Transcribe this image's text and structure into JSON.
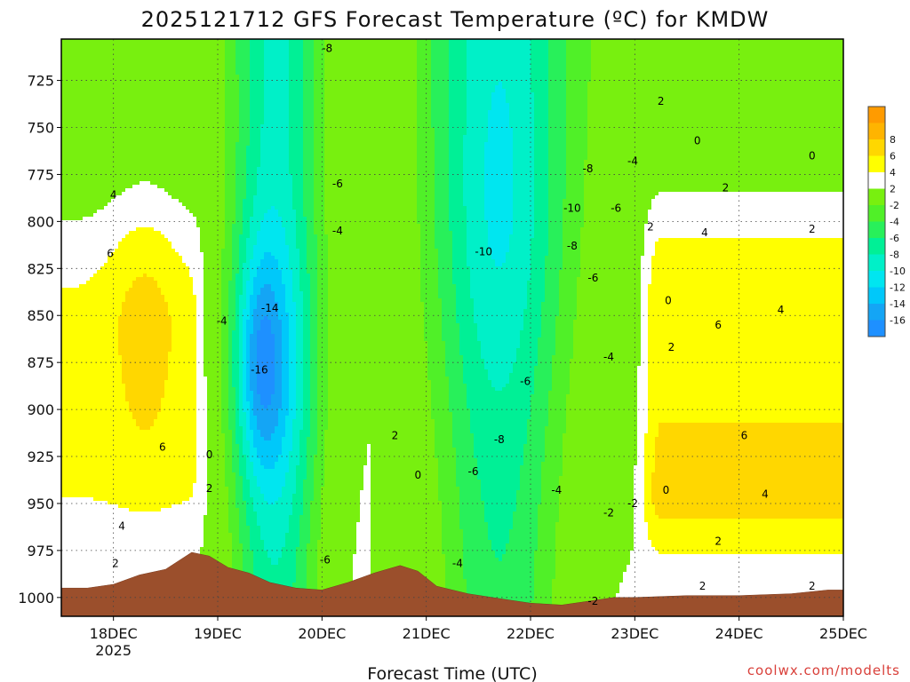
{
  "chart_data": {
    "type": "heatmap",
    "title": "2025121712 GFS Forecast Temperature (ºC) for KMDW",
    "xlabel": "Forecast Time (UTC)",
    "ylabel": "",
    "credit": "coolwx.com/modelts",
    "x_ticks": [
      "18DEC",
      "19DEC",
      "20DEC",
      "21DEC",
      "22DEC",
      "23DEC",
      "24DEC",
      "25DEC"
    ],
    "x_year": "2025",
    "x_range_days": [
      17.5,
      25.0
    ],
    "y_ticks": [
      725,
      750,
      775,
      800,
      825,
      850,
      875,
      900,
      925,
      950,
      975,
      1000
    ],
    "y_range_hpa": [
      703,
      1010
    ],
    "units": "°C",
    "colorbar": {
      "levels": [
        -18,
        -16,
        -14,
        -12,
        -10,
        -8,
        -6,
        -4,
        -2,
        2,
        4,
        6,
        8,
        10
      ],
      "colors": [
        "#1E90FF",
        "#14A5F5",
        "#00C8FA",
        "#00E6F0",
        "#00F0C8",
        "#00F096",
        "#28F05A",
        "#50F028",
        "#78F00F",
        "#FFFFFF",
        "#FFFF00",
        "#FFD700",
        "#FFB400",
        "#FF9B00"
      ],
      "tick_labels": [
        "8",
        "6",
        "4",
        "2",
        "-2",
        "-4",
        "-6",
        "-8",
        "-10",
        "-12",
        "-14",
        "-16"
      ]
    },
    "terrain_surface_hpa": [
      [
        17.5,
        995
      ],
      [
        17.75,
        995
      ],
      [
        18.0,
        993
      ],
      [
        18.25,
        988
      ],
      [
        18.5,
        985
      ],
      [
        18.75,
        976
      ],
      [
        18.92,
        978
      ],
      [
        19.1,
        984
      ],
      [
        19.3,
        987
      ],
      [
        19.5,
        992
      ],
      [
        19.75,
        995
      ],
      [
        20.0,
        996
      ],
      [
        20.25,
        992
      ],
      [
        20.5,
        987
      ],
      [
        20.75,
        983
      ],
      [
        20.92,
        986
      ],
      [
        21.1,
        994
      ],
      [
        21.4,
        998
      ],
      [
        21.75,
        1001
      ],
      [
        22.0,
        1003
      ],
      [
        22.3,
        1004
      ],
      [
        22.55,
        1002
      ],
      [
        22.8,
        1000
      ],
      [
        23.0,
        1000
      ],
      [
        23.5,
        999
      ],
      [
        24.0,
        999
      ],
      [
        24.5,
        998
      ],
      [
        24.85,
        996
      ],
      [
        25.0,
        996
      ]
    ],
    "contour_labels": [
      {
        "t": 18.0,
        "p": 786,
        "text": "4"
      },
      {
        "t": 17.97,
        "p": 817,
        "text": "6"
      },
      {
        "t": 18.47,
        "p": 920,
        "text": "6"
      },
      {
        "t": 18.08,
        "p": 962,
        "text": "4"
      },
      {
        "t": 18.02,
        "p": 982,
        "text": "2"
      },
      {
        "t": 18.92,
        "p": 942,
        "text": "2"
      },
      {
        "t": 18.92,
        "p": 924,
        "text": "0"
      },
      {
        "t": 19.04,
        "p": 853,
        "text": "-4"
      },
      {
        "t": 19.5,
        "p": 846,
        "text": "-14"
      },
      {
        "t": 19.4,
        "p": 879,
        "text": "-16"
      },
      {
        "t": 20.05,
        "p": 708,
        "text": "-8"
      },
      {
        "t": 20.15,
        "p": 780,
        "text": "-6"
      },
      {
        "t": 20.15,
        "p": 805,
        "text": "-4"
      },
      {
        "t": 20.03,
        "p": 980,
        "text": "-6"
      },
      {
        "t": 20.7,
        "p": 914,
        "text": "2"
      },
      {
        "t": 20.92,
        "p": 935,
        "text": "0"
      },
      {
        "t": 21.3,
        "p": 982,
        "text": "-4"
      },
      {
        "t": 21.45,
        "p": 933,
        "text": "-6"
      },
      {
        "t": 21.7,
        "p": 916,
        "text": "-8"
      },
      {
        "t": 21.55,
        "p": 816,
        "text": "-10"
      },
      {
        "t": 21.95,
        "p": 885,
        "text": "-6"
      },
      {
        "t": 22.25,
        "p": 943,
        "text": "-4"
      },
      {
        "t": 22.4,
        "p": 813,
        "text": "-8"
      },
      {
        "t": 22.6,
        "p": 830,
        "text": "-6"
      },
      {
        "t": 22.55,
        "p": 772,
        "text": "-8"
      },
      {
        "t": 22.4,
        "p": 793,
        "text": "-10"
      },
      {
        "t": 22.82,
        "p": 793,
        "text": "-6"
      },
      {
        "t": 22.98,
        "p": 768,
        "text": "-4"
      },
      {
        "t": 22.75,
        "p": 872,
        "text": "-4"
      },
      {
        "t": 22.75,
        "p": 955,
        "text": "-2"
      },
      {
        "t": 22.98,
        "p": 950,
        "text": "-2"
      },
      {
        "t": 22.6,
        "p": 1002,
        "text": "-2"
      },
      {
        "t": 23.15,
        "p": 803,
        "text": "2"
      },
      {
        "t": 23.25,
        "p": 736,
        "text": "2"
      },
      {
        "t": 23.6,
        "p": 757,
        "text": "0"
      },
      {
        "t": 23.32,
        "p": 842,
        "text": "0"
      },
      {
        "t": 23.35,
        "p": 867,
        "text": "2"
      },
      {
        "t": 23.3,
        "p": 943,
        "text": "0"
      },
      {
        "t": 23.67,
        "p": 806,
        "text": "4"
      },
      {
        "t": 23.87,
        "p": 782,
        "text": "2"
      },
      {
        "t": 23.8,
        "p": 855,
        "text": "6"
      },
      {
        "t": 24.05,
        "p": 914,
        "text": "6"
      },
      {
        "t": 24.25,
        "p": 945,
        "text": "4"
      },
      {
        "t": 24.4,
        "p": 847,
        "text": "4"
      },
      {
        "t": 24.7,
        "p": 804,
        "text": "2"
      },
      {
        "t": 24.7,
        "p": 765,
        "text": "0"
      },
      {
        "t": 23.8,
        "p": 970,
        "text": "2"
      },
      {
        "t": 23.65,
        "p": 994,
        "text": "2"
      },
      {
        "t": 24.7,
        "p": 994,
        "text": "2"
      }
    ]
  }
}
